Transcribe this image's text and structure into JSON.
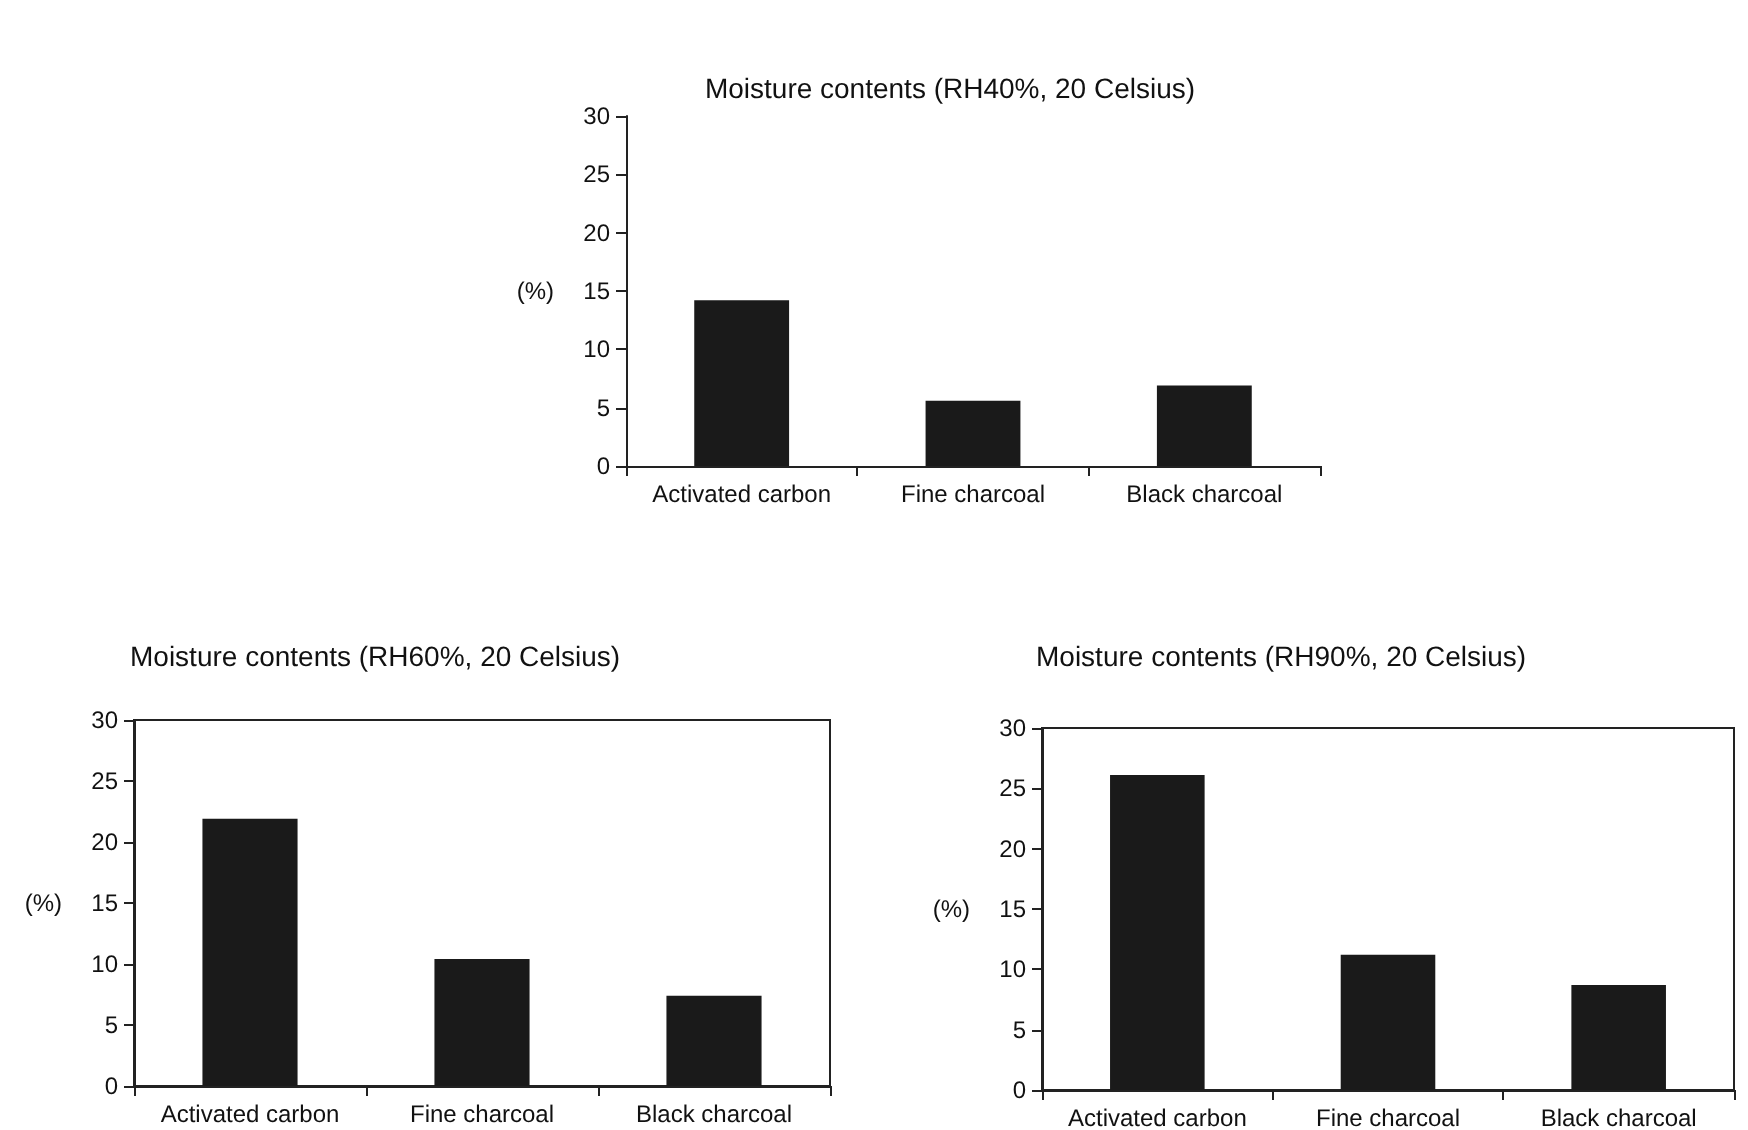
{
  "chart_data": [
    {
      "type": "bar",
      "title": "Moisture contents (RH40%, 20 Celsius)",
      "ylabel": "(%)",
      "categories": [
        "Activated carbon",
        "Fine charcoal",
        "Black charcoal"
      ],
      "values": [
        14.2,
        5.6,
        6.9
      ],
      "color": "#1a1a1a",
      "ylim": [
        0,
        30
      ],
      "yticks": [
        0,
        5,
        10,
        15,
        20,
        25,
        30
      ],
      "grid": false
    },
    {
      "type": "bar",
      "title": "Moisture contents (RH60%, 20 Celsius)",
      "ylabel": "(%)",
      "categories": [
        "Activated carbon",
        "Fine charcoal",
        "Black charcoal"
      ],
      "values": [
        21.9,
        10.4,
        7.4
      ],
      "color": "#1a1a1a",
      "ylim": [
        0,
        30
      ],
      "yticks": [
        0,
        5,
        10,
        15,
        20,
        25,
        30
      ],
      "grid": false
    },
    {
      "type": "bar",
      "title": "Moisture contents (RH90%, 20 Celsius)",
      "ylabel": "(%)",
      "categories": [
        "Activated carbon",
        "Fine charcoal",
        "Black charcoal"
      ],
      "values": [
        26.1,
        11.2,
        8.7
      ],
      "color": "#1a1a1a",
      "ylim": [
        0,
        30
      ],
      "yticks": [
        0,
        5,
        10,
        15,
        20,
        25,
        30
      ],
      "grid": false
    }
  ]
}
